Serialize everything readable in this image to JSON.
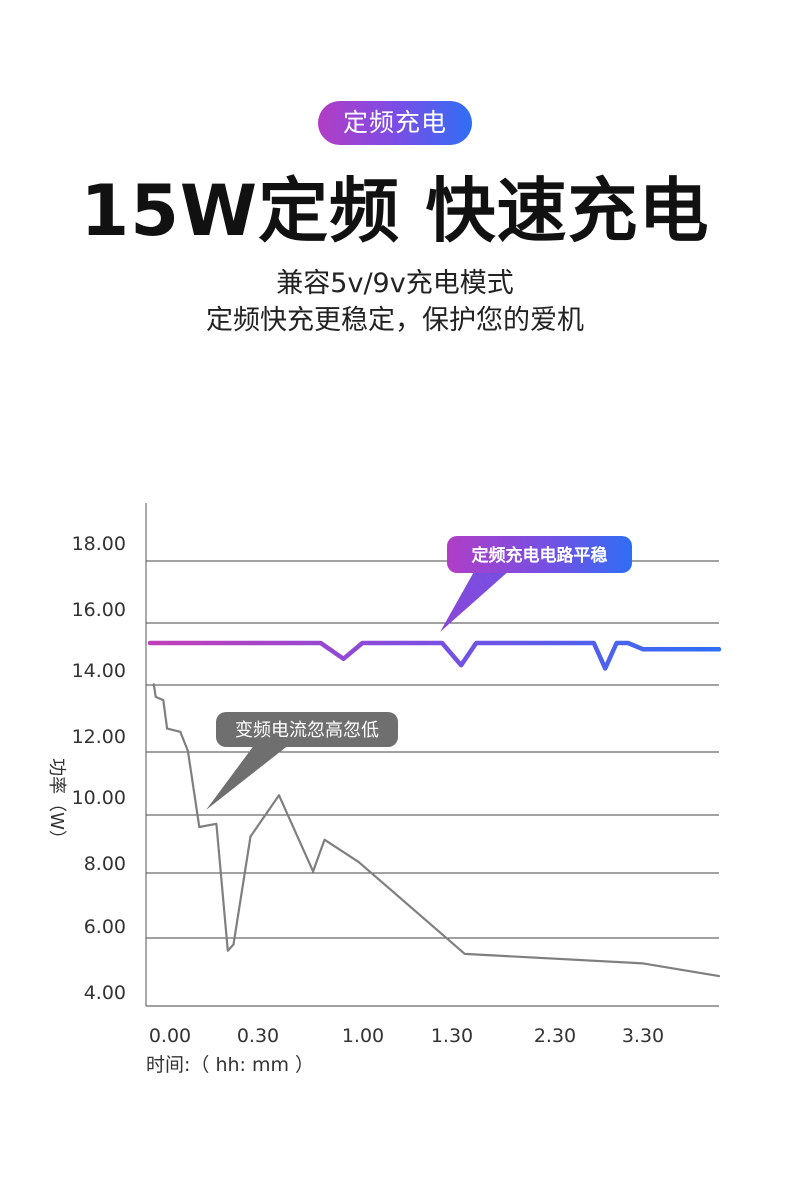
{
  "header": {
    "badge": "定频充电",
    "headline": "15W定频 快速充电",
    "subline1": "兼容5v/9v充电模式",
    "subline2": "定频快充更稳定，保护您的爱机"
  },
  "chart_data": {
    "type": "line",
    "title": "",
    "ylabel": "功率（W）",
    "xlabel": "时间:（ hh: mm ）",
    "ylim": [
      4.0,
      19.0
    ],
    "y_ticks": [
      "18.00",
      "16.00",
      "14.00",
      "12.00",
      "10.00",
      "8.00",
      "6.00",
      "4.00"
    ],
    "x_ticks": [
      "0.00",
      "0.30",
      "1.00",
      "1.30",
      "2.30",
      "3.30"
    ],
    "grid": true,
    "annotations": [
      {
        "text": "定频充电电路平稳",
        "color": "#7c4de6"
      },
      {
        "text": "变频电流忽高忽低",
        "color": "#6f6f6f"
      }
    ],
    "series": [
      {
        "color": "#8a4fd8",
        "points": [
          [
            0,
            15.0
          ],
          [
            4.5,
            15.0
          ],
          [
            5.1,
            14.5
          ],
          [
            5.6,
            15.0
          ],
          [
            7.7,
            15.0
          ],
          [
            8.2,
            14.3
          ],
          [
            8.6,
            15.0
          ],
          [
            11.7,
            15.0
          ],
          [
            12.0,
            14.2
          ],
          [
            12.3,
            15.0
          ],
          [
            12.6,
            15.0
          ],
          [
            13.0,
            14.8
          ],
          [
            15.0,
            14.8
          ]
        ]
      },
      {
        "color": "#7f7f7f",
        "points": [
          [
            0.1,
            13.7
          ],
          [
            0.15,
            13.3
          ],
          [
            0.35,
            13.2
          ],
          [
            0.45,
            12.3
          ],
          [
            0.8,
            12.2
          ],
          [
            1.0,
            11.6
          ],
          [
            1.3,
            9.2
          ],
          [
            1.75,
            9.3
          ],
          [
            2.05,
            5.3
          ],
          [
            2.2,
            5.5
          ],
          [
            2.65,
            8.9
          ],
          [
            3.4,
            10.2
          ],
          [
            4.3,
            7.8
          ],
          [
            4.6,
            8.8
          ],
          [
            5.5,
            8.1
          ],
          [
            8.3,
            5.2
          ],
          [
            13.0,
            4.9
          ],
          [
            15.0,
            4.5
          ]
        ]
      }
    ]
  }
}
